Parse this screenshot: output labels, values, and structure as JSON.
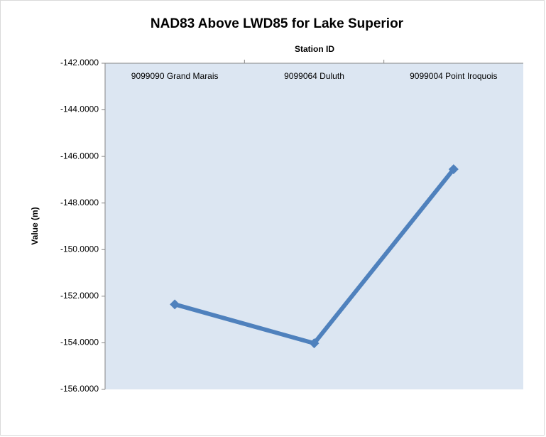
{
  "chart_data": {
    "type": "line",
    "title": "NAD83 Above LWD85 for  Lake Superior",
    "x_label": "Station ID",
    "y_label": "Value (m)",
    "categories": [
      "9099090 Grand Marais",
      "9099064 Duluth",
      "9099004 Point Iroquois"
    ],
    "series": [
      {
        "name": "Value (m)",
        "color": "#4f81bd",
        "values": [
          -152.35,
          -154.02,
          -146.55
        ]
      }
    ],
    "ylim": [
      -156,
      -142
    ],
    "yticks": [
      {
        "value": -142,
        "label": "-142.0000"
      },
      {
        "value": -144,
        "label": "-144.0000"
      },
      {
        "value": -146,
        "label": "-146.0000"
      },
      {
        "value": -148,
        "label": "-148.0000"
      },
      {
        "value": -150,
        "label": "-150.0000"
      },
      {
        "value": -152,
        "label": "-152.0000"
      },
      {
        "value": -154,
        "label": "-154.0000"
      },
      {
        "value": -156,
        "label": "-156.0000"
      }
    ],
    "x_axis_position": "top",
    "plot_background": "#dce6f2"
  }
}
